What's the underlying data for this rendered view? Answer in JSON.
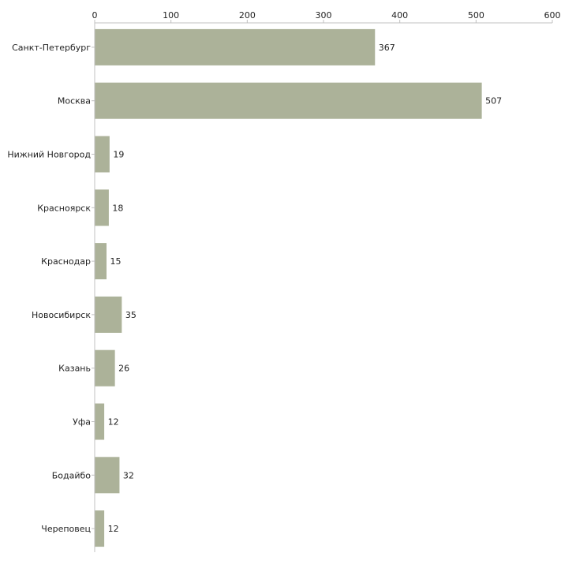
{
  "chart_data": {
    "type": "bar",
    "orientation": "horizontal",
    "title": "",
    "xlabel": "",
    "ylabel": "",
    "xlim": [
      0,
      600
    ],
    "x_ticks": [
      0,
      100,
      200,
      300,
      400,
      500,
      600
    ],
    "x_tick_labels": [
      "0",
      "100",
      "200",
      "300",
      "400",
      "500",
      "600"
    ],
    "grid": false,
    "axis_position": "top",
    "categories": [
      "Санкт-Петербург",
      "Москва",
      "Нижний Новгород",
      "Красноярск",
      "Краснодар",
      "Новосибирск",
      "Казань",
      "Уфа",
      "Бодайбо",
      "Череповец"
    ],
    "values": [
      367,
      507,
      19,
      18,
      15,
      35,
      26,
      12,
      32,
      12
    ],
    "value_labels": [
      "367",
      "507",
      "19",
      "18",
      "15",
      "35",
      "26",
      "12",
      "32",
      "12"
    ],
    "colors": {
      "bar": "#acb299",
      "axis": "#c0c0c0",
      "text": "#222222"
    }
  }
}
